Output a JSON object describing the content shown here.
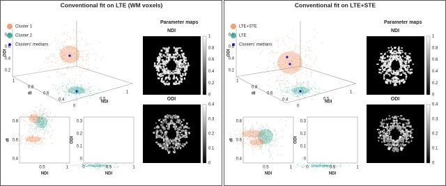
{
  "panels": [
    {
      "title": "Conventional fit on LTE (WM voxels)",
      "legend": [
        "Cluster 1",
        "Cluster 2",
        "Clusters' medians"
      ],
      "colors": [
        "#e8885a",
        "#2a9d8f",
        "#1414d0"
      ],
      "scatter3d": {
        "z_label": "ODI",
        "z_ticks": [
          "0.8",
          "0.6",
          "0.4",
          "0.2"
        ],
        "x_label": "dI",
        "x_ticks": [
          "1",
          "0.8",
          "0.6",
          "0.4"
        ],
        "y_label": "NDI",
        "y_ticks": [
          "0",
          "0.5",
          "1"
        ]
      },
      "maps_title": "Parameter maps",
      "maps": [
        {
          "label": "NDI",
          "ticks": [
            "0",
            "0.2",
            "0.4",
            "0.6",
            "0.8",
            "1"
          ]
        },
        {
          "label": "ODI",
          "ticks": [
            "0",
            "0.1",
            "0.2",
            "0.3",
            "0.4"
          ]
        }
      ],
      "plots": [
        {
          "y_label": "dI",
          "y_ticks": [
            "0.4",
            "0.6",
            "0.8"
          ],
          "x_label": "NDI",
          "x_ticks": [
            "0.5",
            "1"
          ]
        },
        {
          "y_label": "ODI",
          "y_ticks": [
            "0",
            "0.1",
            "0.2",
            "0.3"
          ],
          "x_label": "NDI",
          "x_ticks": [
            "0",
            "0.5",
            "1"
          ]
        }
      ]
    },
    {
      "title": "Conventional fit on LTE+STE",
      "legend": [
        "LTE+STE",
        "LTE",
        "Clusters' medians"
      ],
      "colors": [
        "#e8885a",
        "#2a9d8f",
        "#1414d0"
      ],
      "scatter3d": {
        "z_label": "ODI",
        "z_ticks": [
          "0.8",
          "0.6",
          "0.4",
          "0.2"
        ],
        "x_label": "dI",
        "x_ticks": [
          "1",
          "0.8",
          "0.6",
          "0.4"
        ],
        "y_label": "NDI",
        "y_ticks": [
          "0",
          "0.5",
          "1"
        ]
      },
      "maps_title": "Parameter maps",
      "maps": [
        {
          "label": "NDI",
          "ticks": [
            "0",
            "0.2",
            "0.4",
            "0.6",
            "0.8",
            "1"
          ]
        },
        {
          "label": "ODI",
          "ticks": [
            "0",
            "0.1",
            "0.2",
            "0.3",
            "0.4"
          ]
        }
      ],
      "plots": [
        {
          "y_label": "dI",
          "y_ticks": [
            "0.4",
            "0.6",
            "0.8"
          ],
          "x_label": "NDI",
          "x_ticks": [
            "0.5",
            "1"
          ]
        },
        {
          "y_label": "ODI",
          "y_ticks": [
            "0",
            "0.1",
            "0.2",
            "0.3"
          ],
          "x_label": "NDI",
          "x_ticks": [
            "0",
            "0.5",
            "1"
          ]
        }
      ]
    }
  ]
}
